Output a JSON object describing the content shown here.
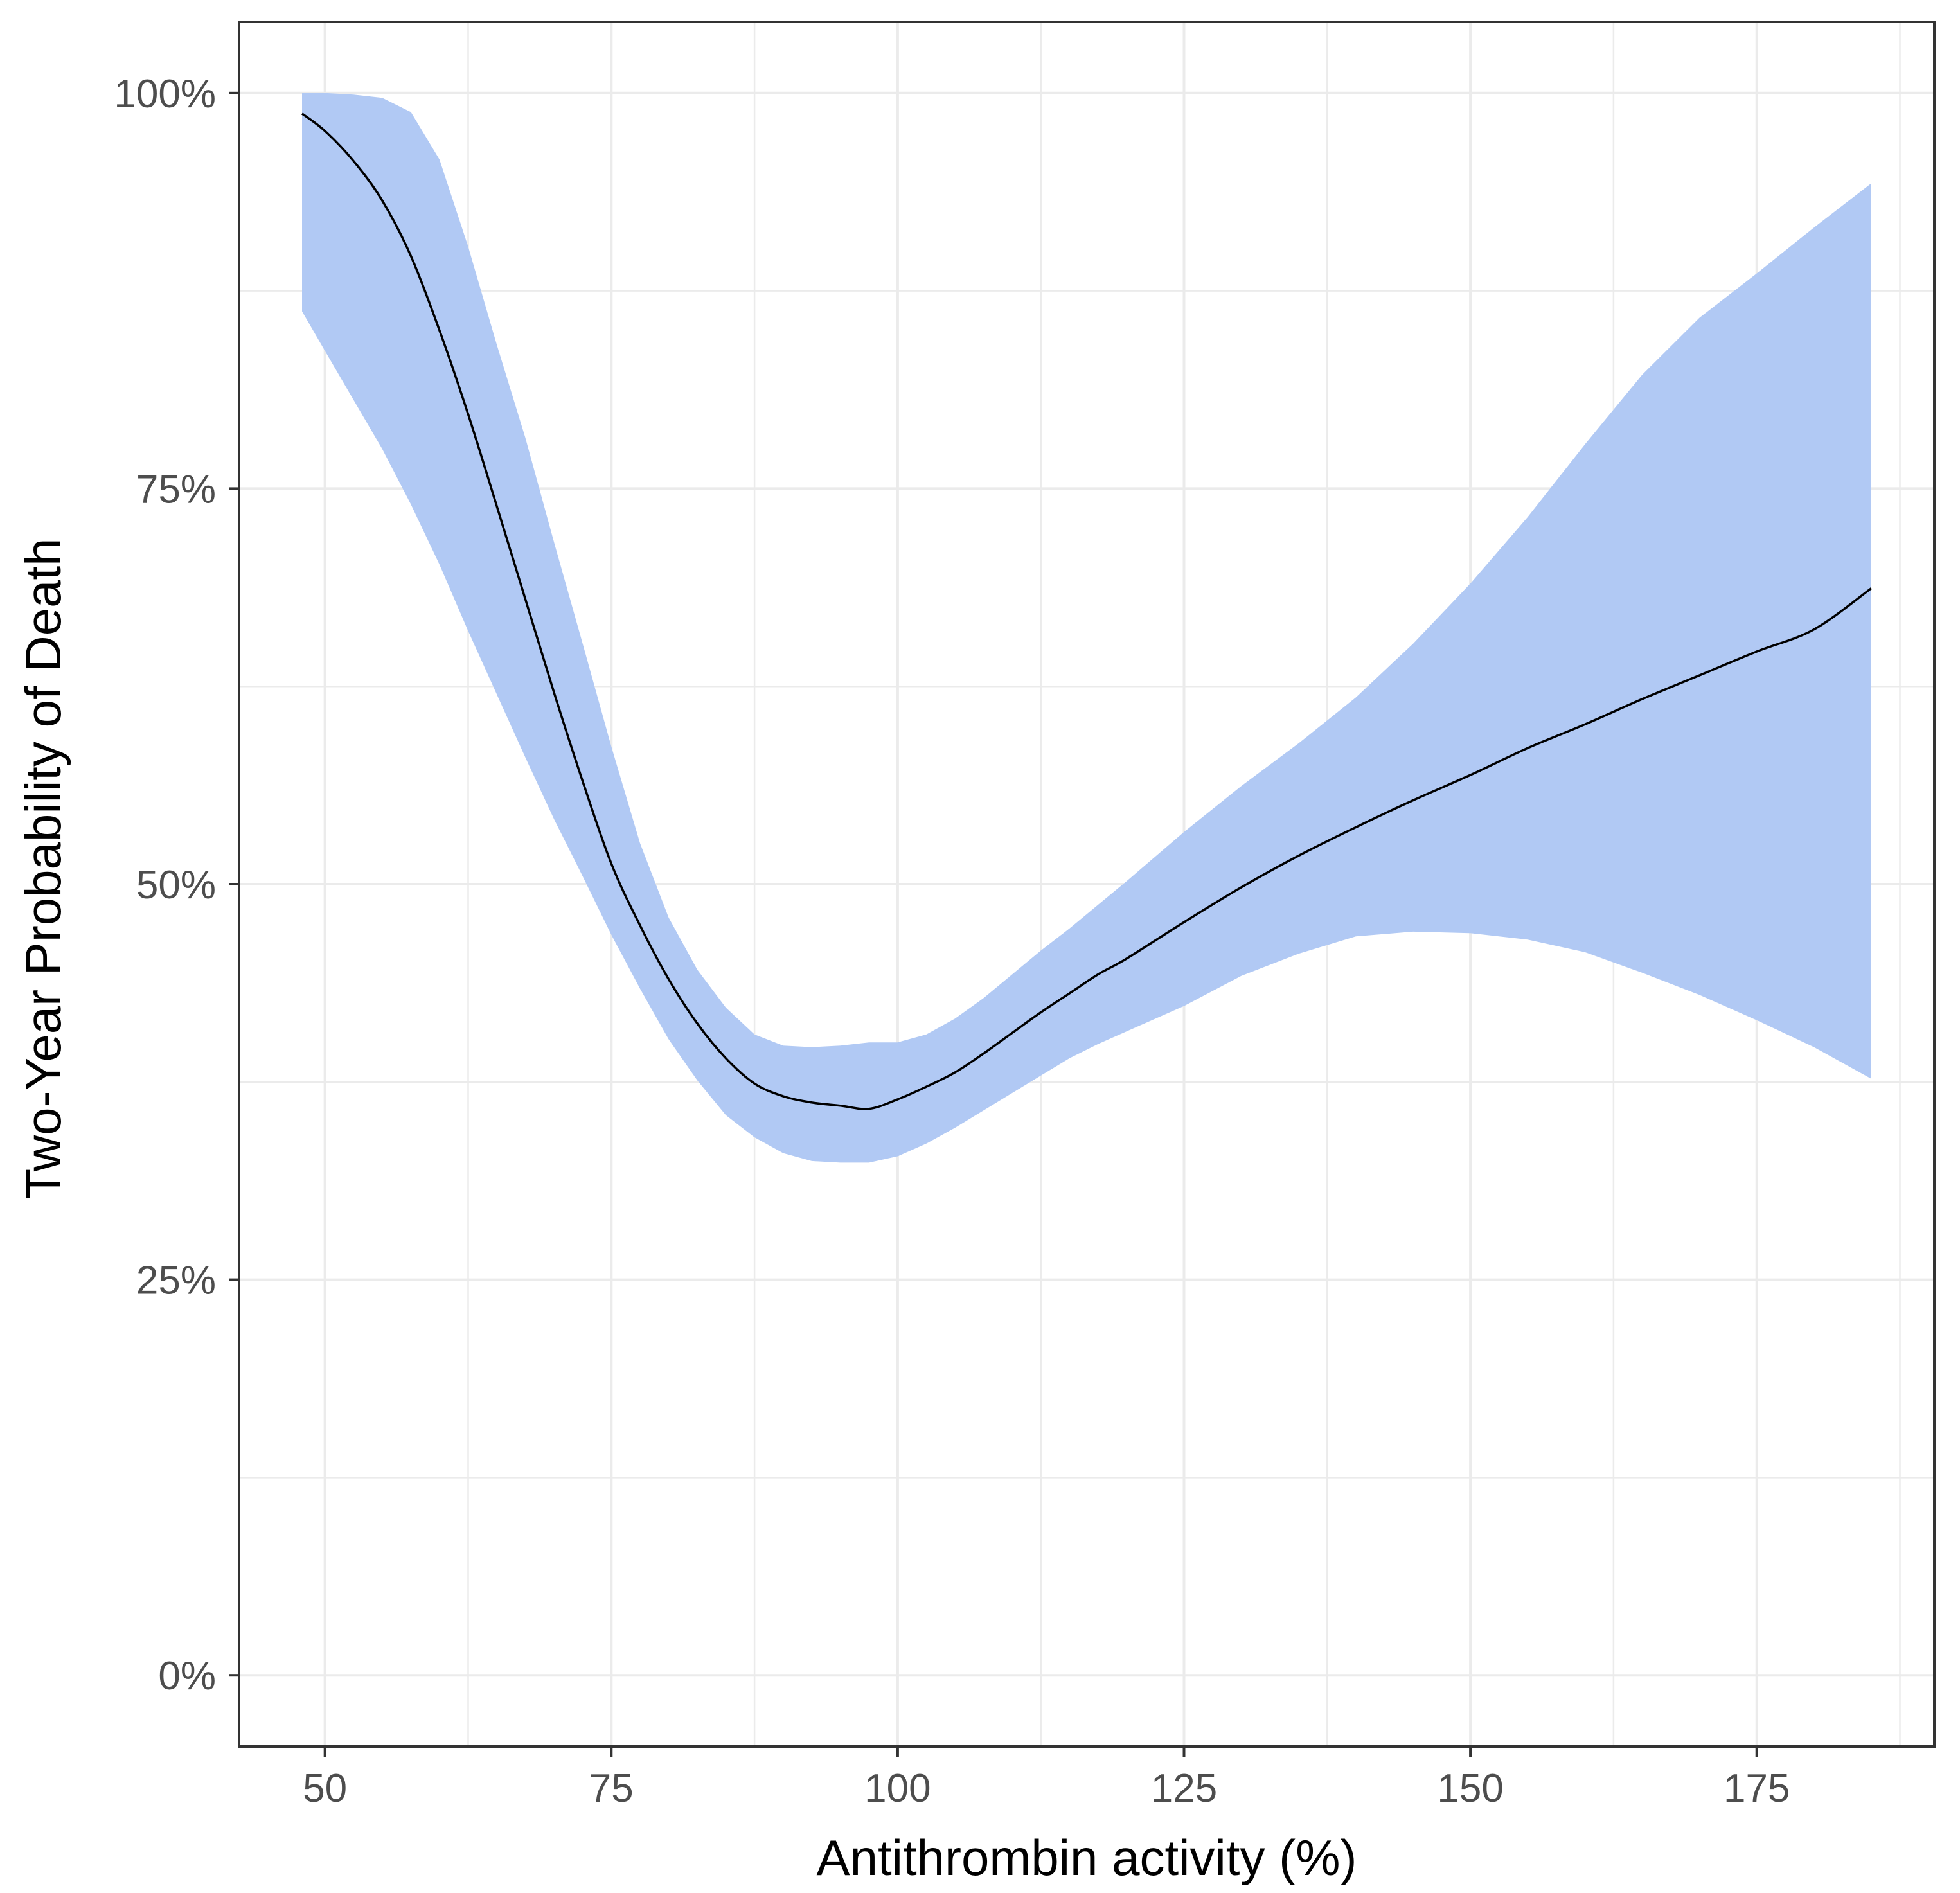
{
  "chart_data": {
    "type": "line",
    "title": "",
    "xlabel": "Antithrombin activity (%)",
    "ylabel": "Two-Year Probability of Death",
    "xlim": [
      42.5,
      190.5
    ],
    "ylim": [
      -0.045,
      1.045
    ],
    "x_ticks": [
      50,
      75,
      100,
      125,
      150,
      175
    ],
    "x_tick_labels": [
      "50",
      "75",
      "100",
      "125",
      "150",
      "175"
    ],
    "x_minor_ticks": [
      62.5,
      87.5,
      112.5,
      137.5,
      162.5,
      187.5
    ],
    "y_ticks": [
      0,
      0.25,
      0.5,
      0.75,
      1.0
    ],
    "y_tick_labels": [
      "0%",
      "25%",
      "50%",
      "75%",
      "100%"
    ],
    "y_minor_ticks": [
      0.125,
      0.375,
      0.625,
      0.875
    ],
    "grid": true,
    "colors": {
      "line": "#000000",
      "ribbon": "#b1c9f4",
      "grid": "#ebebeb",
      "panel_border": "#333333",
      "tick_label": "#4d4d4d"
    },
    "series": [
      {
        "x": [
          48,
          50,
          52.5,
          55,
          57.5,
          60,
          62.5,
          65,
          67.5,
          70,
          72.5,
          75,
          77.5,
          80,
          82.5,
          85,
          87.5,
          90,
          92.5,
          95,
          97.5,
          100,
          102.5,
          105,
          107.5,
          110,
          112.5,
          115,
          117.5,
          120,
          125,
          130,
          135,
          140,
          145,
          150,
          155,
          160,
          165,
          170,
          175,
          180,
          185
        ],
        "y": [
          0.987,
          0.976,
          0.957,
          0.932,
          0.897,
          0.85,
          0.797,
          0.739,
          0.68,
          0.621,
          0.565,
          0.513,
          0.474,
          0.44,
          0.412,
          0.39,
          0.374,
          0.366,
          0.362,
          0.36,
          0.358,
          0.364,
          0.372,
          0.381,
          0.393,
          0.406,
          0.419,
          0.431,
          0.443,
          0.453,
          0.476,
          0.498,
          0.518,
          0.536,
          0.553,
          0.569,
          0.586,
          0.601,
          0.617,
          0.632,
          0.647,
          0.661,
          0.687
        ]
      }
    ],
    "ribbon": {
      "x": [
        48,
        50,
        52.5,
        55,
        57.5,
        60,
        62.5,
        65,
        67.5,
        70,
        72.5,
        75,
        77.5,
        80,
        82.5,
        85,
        87.5,
        90,
        92.5,
        95,
        97.5,
        100,
        102.5,
        105,
        107.5,
        110,
        112.5,
        115,
        117.5,
        120,
        125,
        130,
        135,
        140,
        145,
        150,
        155,
        160,
        165,
        170,
        175,
        180,
        185
      ],
      "upper": [
        1.0,
        1.0,
        0.999,
        0.997,
        0.988,
        0.958,
        0.903,
        0.841,
        0.782,
        0.716,
        0.652,
        0.587,
        0.526,
        0.479,
        0.446,
        0.422,
        0.405,
        0.398,
        0.397,
        0.398,
        0.4,
        0.4,
        0.405,
        0.415,
        0.428,
        0.443,
        0.458,
        0.472,
        0.487,
        0.502,
        0.533,
        0.562,
        0.589,
        0.618,
        0.652,
        0.69,
        0.732,
        0.778,
        0.822,
        0.858,
        0.886,
        0.915,
        0.943
      ],
      "lower": [
        0.862,
        0.837,
        0.806,
        0.775,
        0.74,
        0.702,
        0.66,
        0.62,
        0.58,
        0.541,
        0.505,
        0.468,
        0.434,
        0.402,
        0.376,
        0.354,
        0.34,
        0.33,
        0.325,
        0.324,
        0.324,
        0.328,
        0.336,
        0.346,
        0.357,
        0.368,
        0.379,
        0.39,
        0.399,
        0.407,
        0.423,
        0.442,
        0.456,
        0.467,
        0.47,
        0.469,
        0.465,
        0.457,
        0.444,
        0.43,
        0.414,
        0.397,
        0.377
      ]
    }
  }
}
